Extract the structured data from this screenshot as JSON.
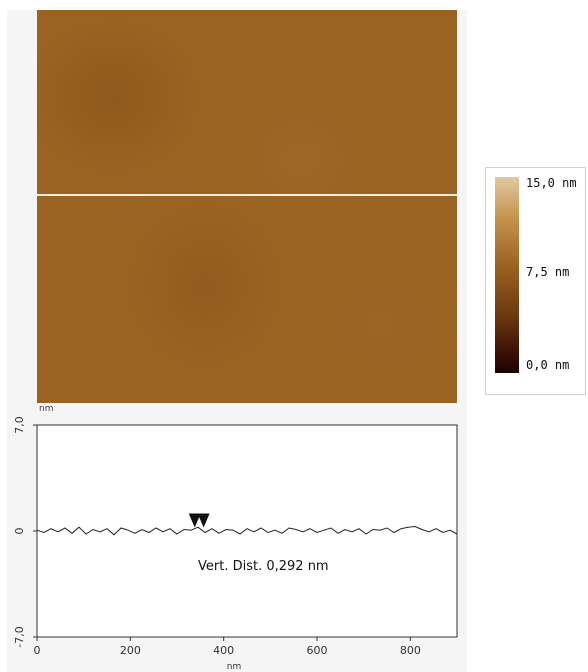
{
  "height_image": {
    "top_unit_label": "nm"
  },
  "colorbar": {
    "max_label": "15,0 nm",
    "mid_label": "7,5 nm",
    "min_label": "0,0 nm",
    "colors": [
      "#e2c9a3",
      "#c79550",
      "#9a6322",
      "#6e3a10",
      "#3a1006",
      "#1c0202"
    ]
  },
  "chart_data": {
    "type": "line",
    "ylabel": "nm",
    "xlabel": "nm",
    "xlim": [
      0,
      900
    ],
    "ylim": [
      -7,
      7
    ],
    "xticks": [
      0,
      200,
      400,
      600,
      800
    ],
    "yticks": [
      7.0,
      0,
      -7.0
    ],
    "ytick_labels": [
      "7,0",
      "0",
      "-7,0"
    ],
    "annotation": "Vert. Dist. 0,292 nm",
    "markers_x": [
      338,
      357
    ],
    "series": [
      {
        "x": [
          0,
          15,
          30,
          45,
          60,
          75,
          90,
          105,
          120,
          135,
          150,
          165,
          180,
          195,
          210,
          225,
          240,
          255,
          270,
          285,
          300,
          315,
          330,
          345,
          360,
          375,
          390,
          405,
          420,
          435,
          450,
          465,
          480,
          495,
          510,
          525,
          540,
          555,
          570,
          585,
          600,
          615,
          630,
          645,
          660,
          675,
          690,
          705,
          720,
          735,
          750,
          765,
          780,
          795,
          810,
          825,
          840,
          855,
          870,
          885,
          900
        ],
        "y": [
          0.05,
          -0.1,
          0.15,
          -0.05,
          0.2,
          -0.15,
          0.25,
          -0.2,
          0.1,
          -0.05,
          0.15,
          -0.25,
          0.2,
          0.05,
          -0.15,
          0.1,
          -0.1,
          0.2,
          -0.05,
          0.15,
          -0.2,
          0.1,
          0.05,
          0.25,
          -0.1,
          0.15,
          -0.15,
          0.1,
          0.05,
          -0.2,
          0.15,
          -0.05,
          0.2,
          -0.1,
          0.05,
          -0.15,
          0.2,
          0.1,
          -0.05,
          0.15,
          -0.1,
          0.05,
          0.2,
          -0.15,
          0.1,
          -0.05,
          0.15,
          -0.2,
          0.1,
          0.05,
          0.2,
          -0.1,
          0.15,
          0.25,
          0.3,
          0.1,
          -0.05,
          0.15,
          -0.1,
          0.05,
          -0.2
        ]
      }
    ]
  }
}
